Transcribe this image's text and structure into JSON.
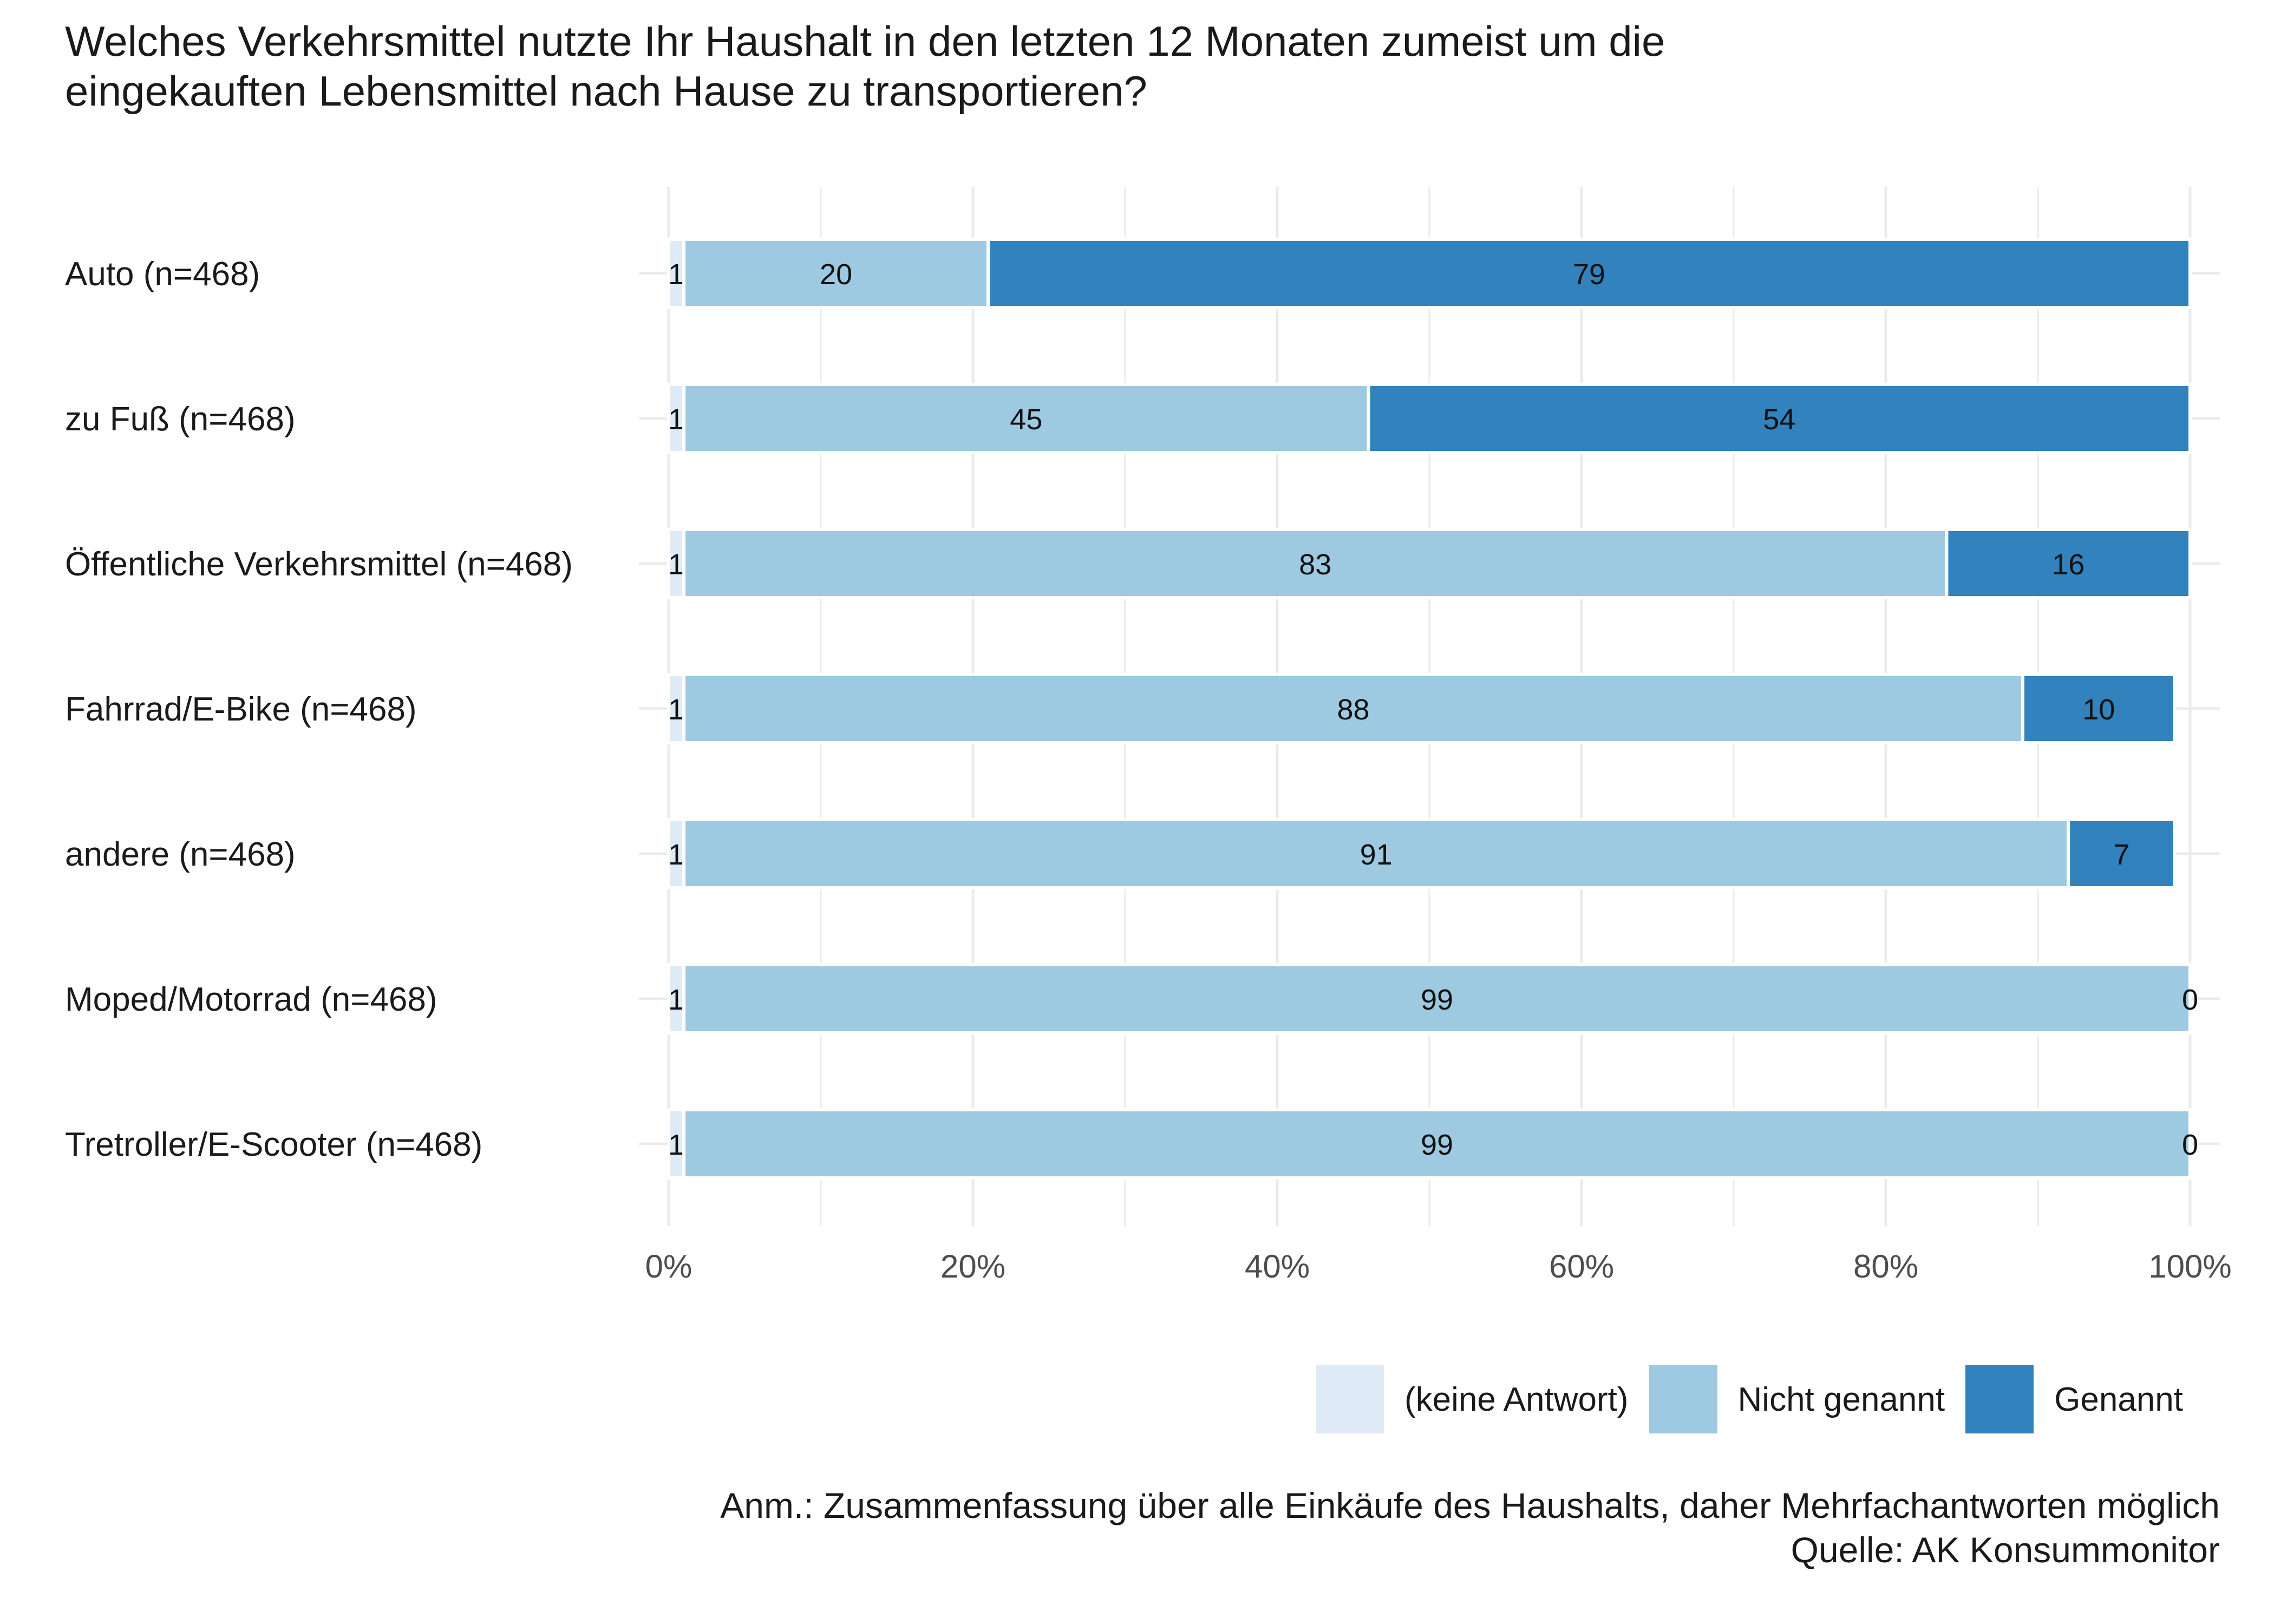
{
  "title_lines": [
    "Welches Verkehrsmittel nutzte Ihr Haushalt in den letzten 12 Monaten zumeist um die",
    "eingekauften Lebensmittel nach Hause zu transportieren?"
  ],
  "chart_data": {
    "type": "bar",
    "orientation": "horizontal",
    "stacked": true,
    "categories": [
      "Auto (n=468)",
      "zu Fuß (n=468)",
      "Öffentliche Verkehrsmittel (n=468)",
      "Fahrrad/E-Bike (n=468)",
      "andere (n=468)",
      "Moped/Motorrad (n=468)",
      "Tretroller/E-Scooter (n=468)"
    ],
    "series": [
      {
        "name": "(keine Antwort)",
        "color": "#deebf7",
        "values": [
          1,
          1,
          1,
          1,
          1,
          1,
          1
        ]
      },
      {
        "name": "Nicht genannt",
        "color": "#9ecae1",
        "values": [
          20,
          45,
          83,
          88,
          91,
          99,
          99
        ]
      },
      {
        "name": "Genannt",
        "color": "#3182bd",
        "values": [
          79,
          54,
          16,
          10,
          7,
          0,
          0
        ]
      }
    ],
    "x_ticks": [
      "0%",
      "20%",
      "40%",
      "60%",
      "80%",
      "100%"
    ],
    "xlim": [
      0,
      100
    ],
    "grid": true,
    "legend_position": "bottom-right"
  },
  "note": {
    "line1": "Anm.: Zusammenfassung über alle Einkäufe des Haushalts, daher Mehrfachantworten möglich",
    "line2": "Quelle: AK Konsummonitor"
  }
}
